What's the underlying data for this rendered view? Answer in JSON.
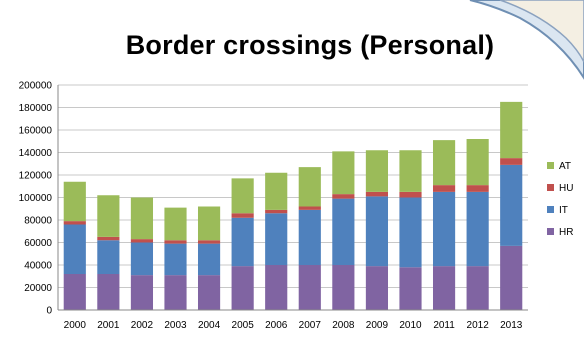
{
  "chart_data": {
    "type": "bar",
    "stacked": true,
    "title": "Border crossings (Personal)",
    "xlabel": "",
    "ylabel": "",
    "categories": [
      "2000",
      "2001",
      "2002",
      "2003",
      "2004",
      "2005",
      "2006",
      "2007",
      "2008",
      "2009",
      "2010",
      "2011",
      "2012",
      "2013"
    ],
    "ylim": [
      0,
      200000
    ],
    "yticks": [
      0,
      20000,
      40000,
      60000,
      80000,
      100000,
      120000,
      140000,
      160000,
      180000,
      200000
    ],
    "ytick_labels": [
      "0",
      "20000",
      "40000",
      "60000",
      "80000",
      "100000",
      "120000",
      "140000",
      "160000",
      "180000",
      "200000"
    ],
    "grid": true,
    "legend_position": "right",
    "series": [
      {
        "name": "HR",
        "color": "#8064a2",
        "values": [
          32000,
          32000,
          31000,
          31000,
          31000,
          39000,
          40000,
          40000,
          40000,
          39000,
          38000,
          39000,
          39000,
          57000
        ]
      },
      {
        "name": "IT",
        "color": "#4f81bd",
        "values": [
          44000,
          30000,
          29000,
          28000,
          28000,
          43000,
          46000,
          49000,
          59000,
          62000,
          62000,
          66000,
          66000,
          72000
        ]
      },
      {
        "name": "HU",
        "color": "#c0504d",
        "values": [
          3000,
          3000,
          3000,
          3000,
          3000,
          4000,
          3000,
          3000,
          4000,
          4000,
          5000,
          6000,
          6000,
          6000
        ]
      },
      {
        "name": "AT",
        "color": "#9bbb59",
        "values": [
          35000,
          37000,
          37000,
          29000,
          30000,
          31000,
          33000,
          35000,
          38000,
          37000,
          37000,
          40000,
          41000,
          50000
        ]
      }
    ],
    "legend_order": [
      "AT",
      "HU",
      "IT",
      "HR"
    ]
  }
}
